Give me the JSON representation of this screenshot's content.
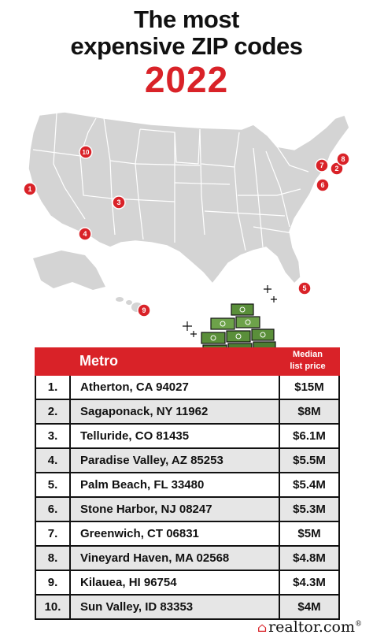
{
  "header": {
    "title_line1": "The most",
    "title_line2": "expensive ZIP codes",
    "year": "2022"
  },
  "map": {
    "markers": [
      "1",
      "2",
      "3",
      "4",
      "5",
      "6",
      "7",
      "8",
      "9",
      "10"
    ],
    "marker_color": "#d92228",
    "land_color": "#d4d4d4"
  },
  "table": {
    "col_metro": "Metro",
    "col_price_line1": "Median",
    "col_price_line2": "list price",
    "header_color": "#d92228",
    "rows": [
      {
        "rank": "1.",
        "metro": "Atherton, CA 94027",
        "price": "$15M"
      },
      {
        "rank": "2.",
        "metro": "Sagaponack, NY 11962",
        "price": "$8M"
      },
      {
        "rank": "3.",
        "metro": "Telluride, CO 81435",
        "price": "$6.1M"
      },
      {
        "rank": "4.",
        "metro": "Paradise Valley, AZ 85253",
        "price": "$5.5M"
      },
      {
        "rank": "5.",
        "metro": "Palm Beach, FL 33480",
        "price": "$5.4M"
      },
      {
        "rank": "6.",
        "metro": "Stone Harbor, NJ 08247",
        "price": "$5.3M"
      },
      {
        "rank": "7.",
        "metro": "Greenwich, CT 06831",
        "price": "$5M"
      },
      {
        "rank": "8.",
        "metro": "Vineyard Haven, MA 02568",
        "price": "$4.8M"
      },
      {
        "rank": "9.",
        "metro": "Kilauea, HI 96754",
        "price": "$4.3M"
      },
      {
        "rank": "10.",
        "metro": "Sun Valley, ID 83353",
        "price": "$4M"
      }
    ]
  },
  "footer": {
    "brand": "realtor.com",
    "brand_suffix": "®"
  }
}
